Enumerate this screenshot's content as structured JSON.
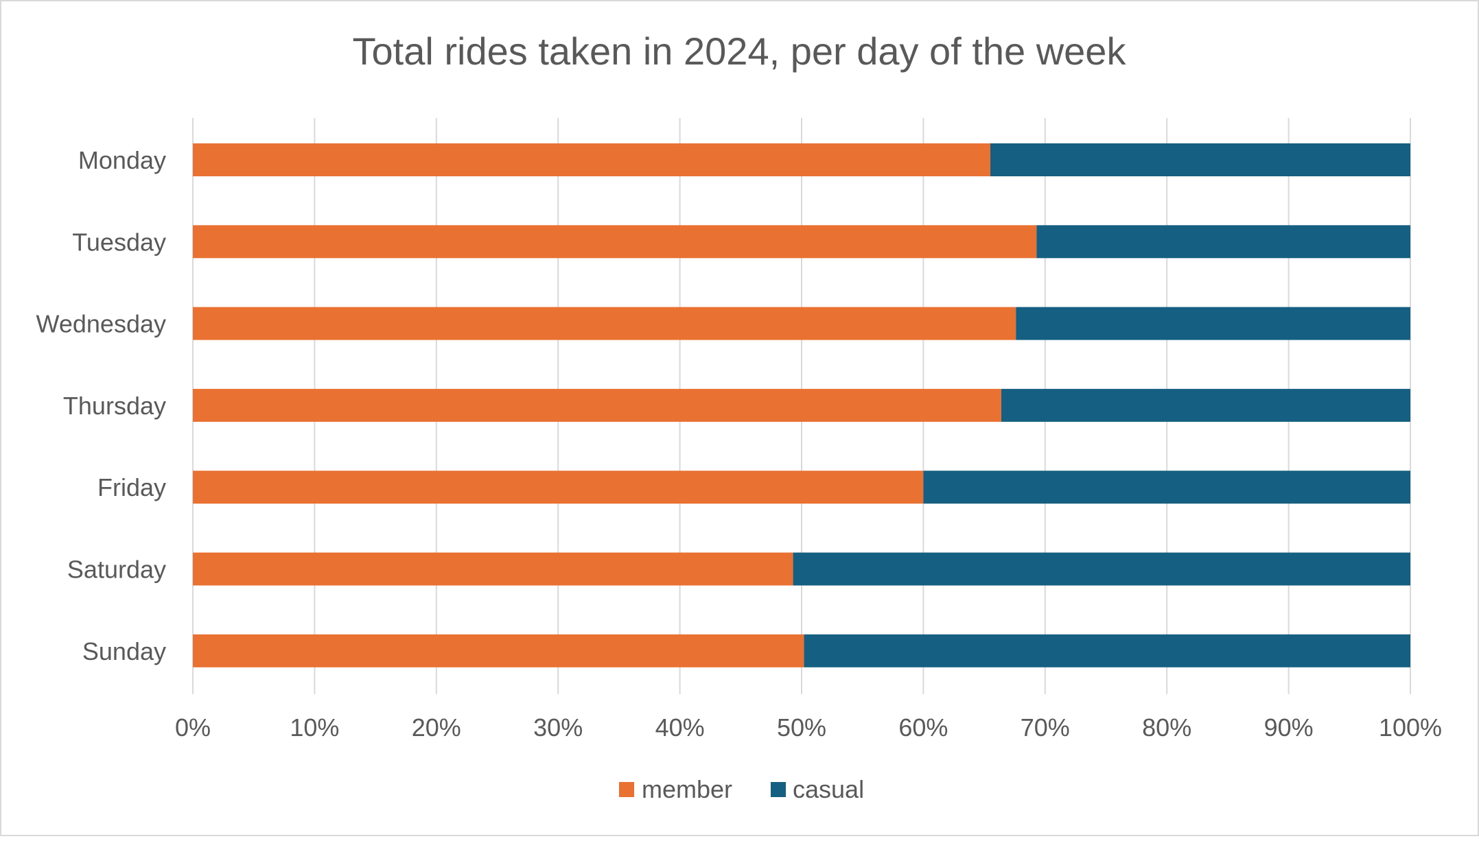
{
  "chart_data": {
    "type": "bar",
    "orientation": "horizontal",
    "stacked": "percent",
    "title": "Total rides taken in 2024, per day of the week",
    "categories": [
      "Monday",
      "Tuesday",
      "Wednesday",
      "Thursday",
      "Friday",
      "Saturday",
      "Sunday"
    ],
    "series": [
      {
        "name": "member",
        "color": "#E97132",
        "values": [
          65.5,
          69.3,
          67.6,
          66.4,
          60.0,
          49.3,
          50.2
        ]
      },
      {
        "name": "casual",
        "color": "#156082",
        "values": [
          34.5,
          30.7,
          32.4,
          33.6,
          40.0,
          50.7,
          49.8
        ]
      }
    ],
    "x_ticks": [
      "0%",
      "10%",
      "20%",
      "30%",
      "40%",
      "50%",
      "60%",
      "70%",
      "80%",
      "90%",
      "100%"
    ],
    "xlim": [
      0,
      100
    ],
    "grid": "vertical",
    "legend_position": "bottom",
    "colors": {
      "text": "#595959",
      "grid": "#d9d9d9",
      "frame": "#d9d9d9"
    }
  }
}
